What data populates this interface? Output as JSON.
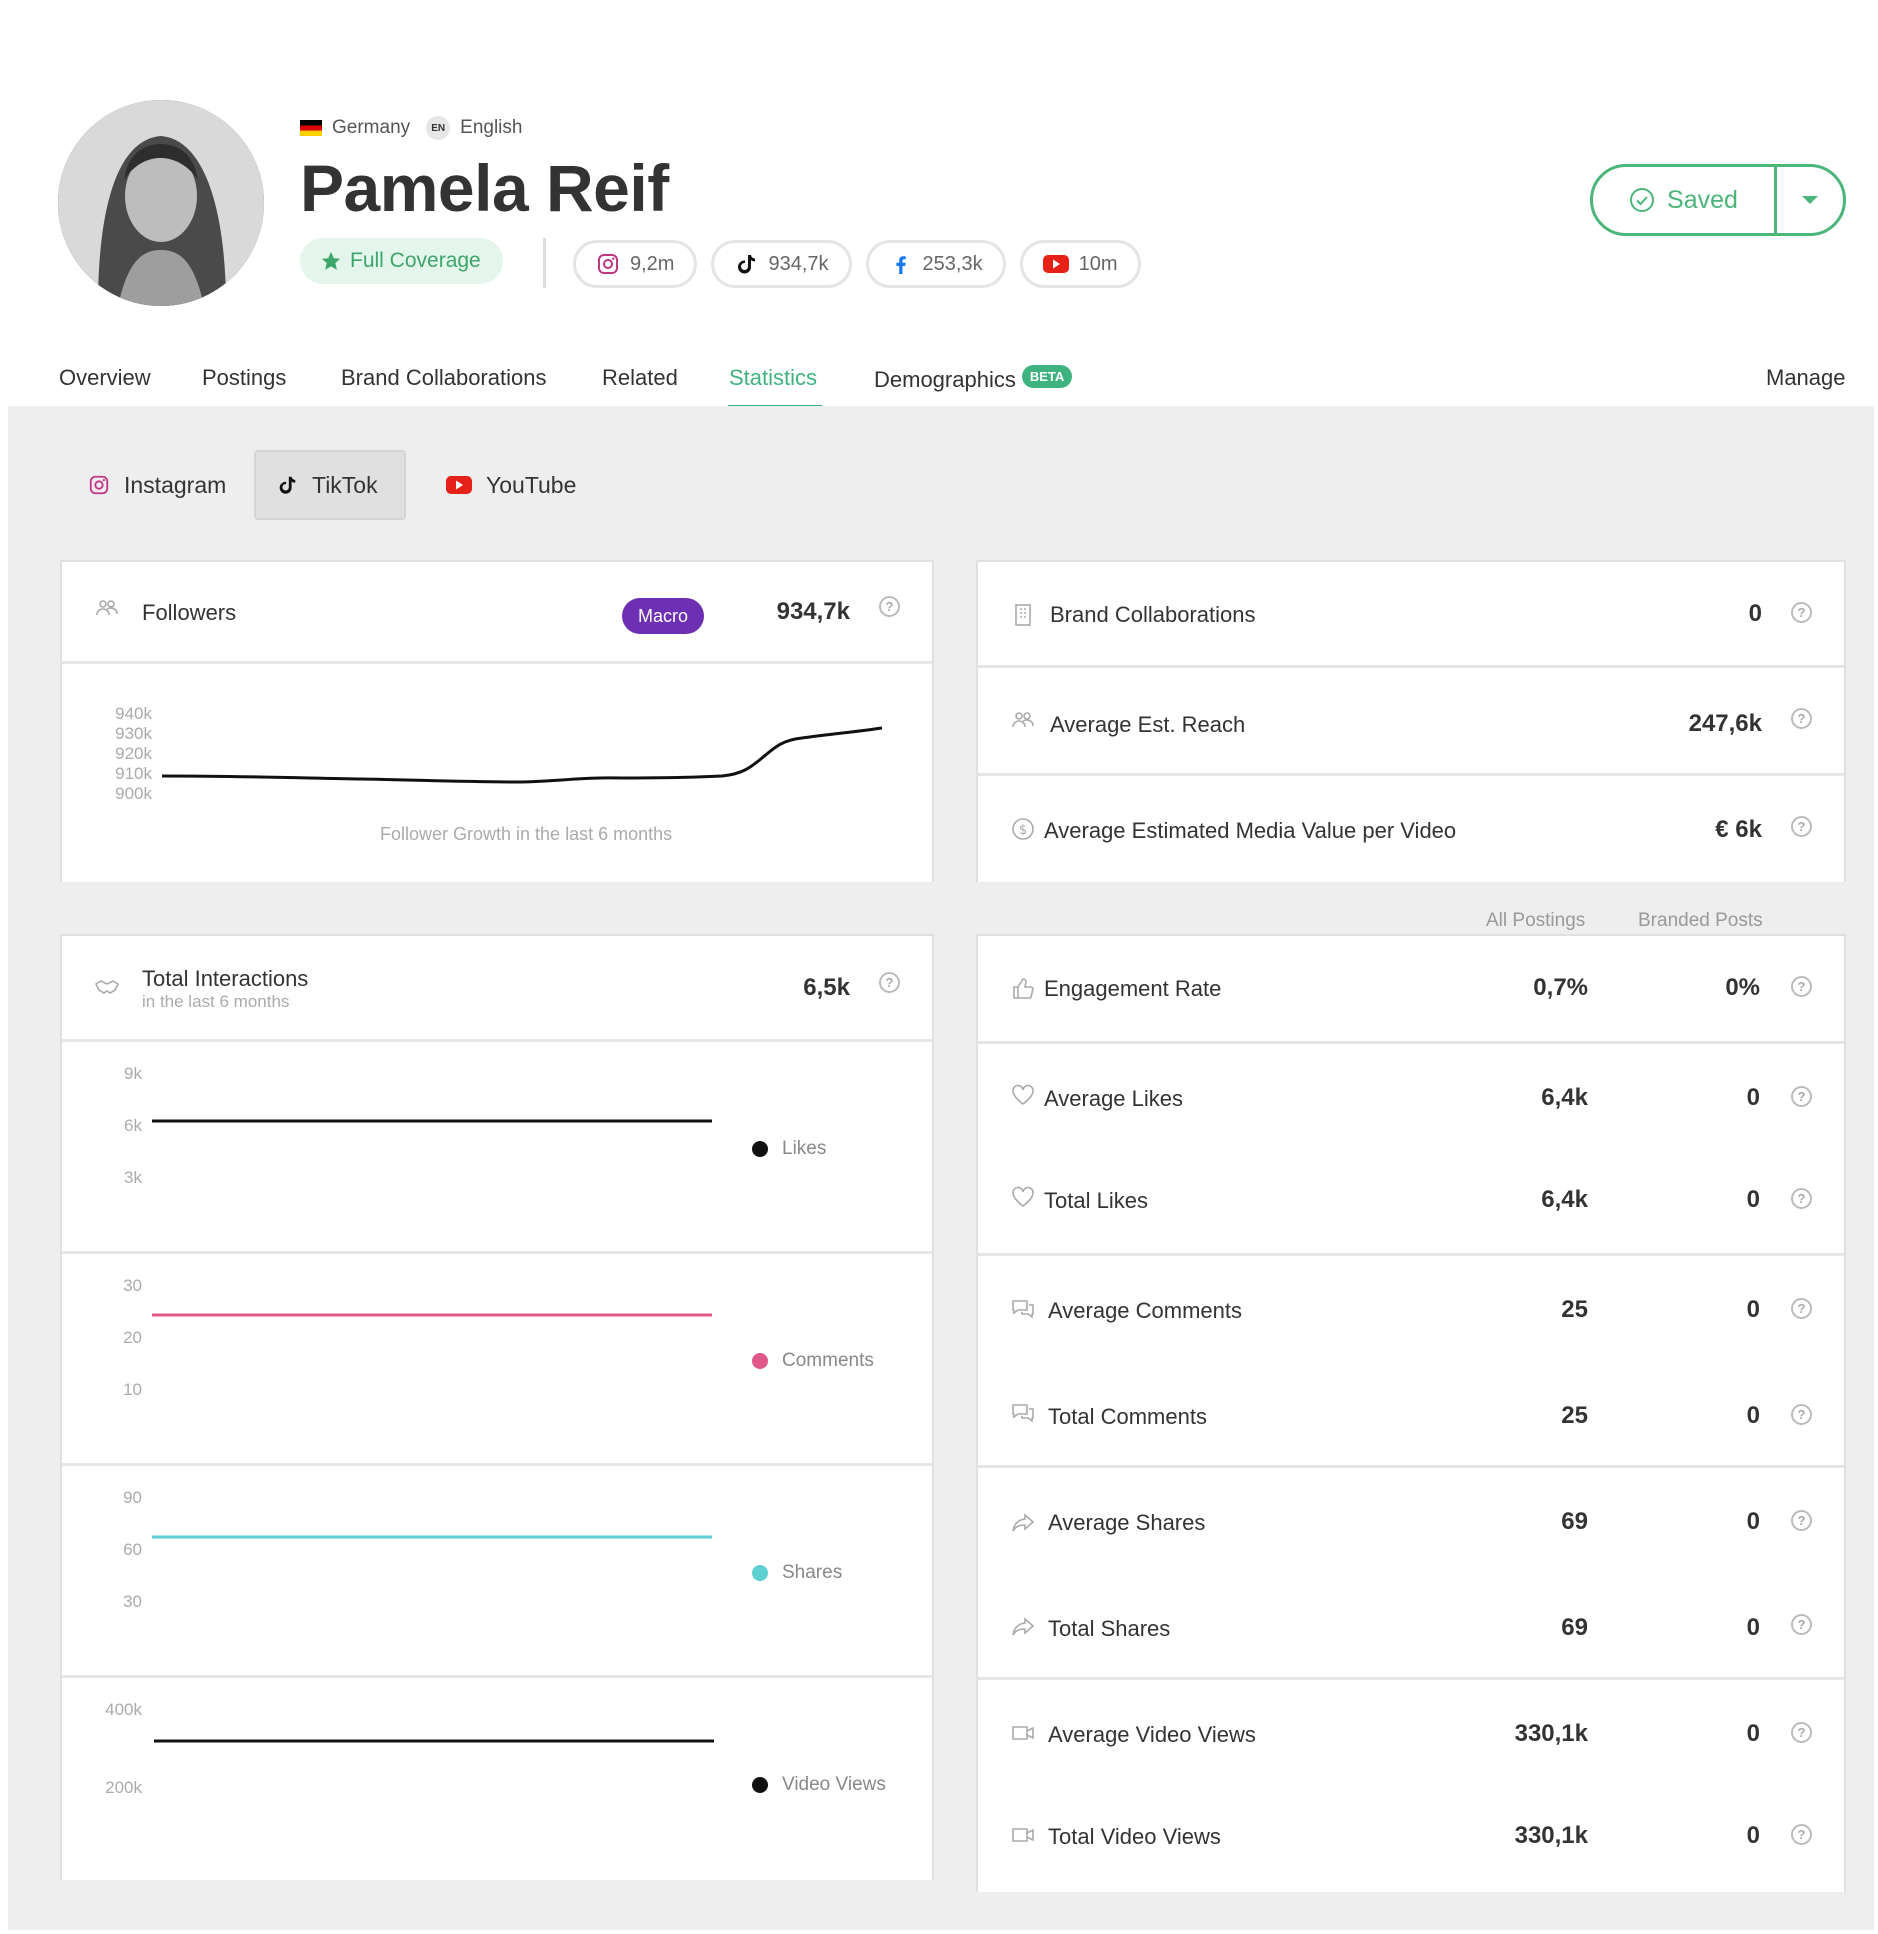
{
  "profile": {
    "country": "Germany",
    "language_code": "EN",
    "language": "English",
    "name": "Pamela Reif",
    "coverage": "Full Coverage",
    "socials": [
      {
        "icon": "instagram-icon",
        "value": "9,2m"
      },
      {
        "icon": "tiktok-icon",
        "value": "934,7k"
      },
      {
        "icon": "facebook-icon",
        "value": "253,3k"
      },
      {
        "icon": "youtube-icon",
        "value": "10m"
      }
    ],
    "saved_label": "Saved"
  },
  "nav": {
    "items": [
      "Overview",
      "Postings",
      "Brand Collaborations",
      "Related",
      "Statistics",
      "Demographics"
    ],
    "beta": "BETA",
    "active": "Statistics",
    "manage": "Manage"
  },
  "platform_tabs": [
    "Instagram",
    "TikTok",
    "YouTube"
  ],
  "followers": {
    "label": "Followers",
    "badge": "Macro",
    "value": "934,7k",
    "caption": "Follower Growth in the last 6 months",
    "ticks": [
      "940k",
      "930k",
      "920k",
      "910k",
      "900k"
    ]
  },
  "summary": [
    {
      "label": "Brand Collaborations",
      "value": "0"
    },
    {
      "label": "Average Est. Reach",
      "value": "247,6k"
    },
    {
      "label": "Average Estimated Media Value per Video",
      "value": "€ 6k"
    }
  ],
  "interactions": {
    "label": "Total Interactions",
    "sublabel": "in the last 6 months",
    "value": "6,5k",
    "charts": [
      {
        "legend": "Likes",
        "color": "#111111",
        "ticks": [
          "9k",
          "6k",
          "3k"
        ]
      },
      {
        "legend": "Comments",
        "color": "#e0588a",
        "ticks": [
          "30",
          "20",
          "10"
        ]
      },
      {
        "legend": "Shares",
        "color": "#5fd0d2",
        "ticks": [
          "90",
          "60",
          "30"
        ]
      },
      {
        "legend": "Video Views",
        "color": "#111111",
        "ticks": [
          "400k",
          "200k"
        ]
      }
    ]
  },
  "metrics": {
    "col_all": "All Postings",
    "col_branded": "Branded Posts",
    "rows": [
      {
        "label": "Engagement Rate",
        "all": "0,7%",
        "branded": "0%"
      },
      {
        "label": "Average Likes",
        "all": "6,4k",
        "branded": "0"
      },
      {
        "label": "Total Likes",
        "all": "6,4k",
        "branded": "0"
      },
      {
        "label": "Average Comments",
        "all": "25",
        "branded": "0"
      },
      {
        "label": "Total Comments",
        "all": "25",
        "branded": "0"
      },
      {
        "label": "Average Shares",
        "all": "69",
        "branded": "0"
      },
      {
        "label": "Total Shares",
        "all": "69",
        "branded": "0"
      },
      {
        "label": "Average Video Views",
        "all": "330,1k",
        "branded": "0"
      },
      {
        "label": "Total Video Views",
        "all": "330,1k",
        "branded": "0"
      }
    ]
  },
  "help_glyph": "?"
}
